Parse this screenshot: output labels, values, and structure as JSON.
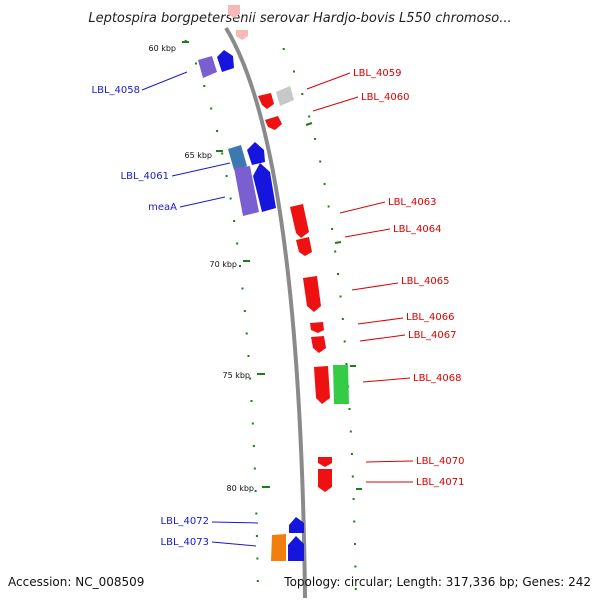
{
  "title": "Leptospira borgpetersenii serovar Hardjo-bovis L550 chromoso...",
  "footer": {
    "accession": "Accession: NC_008509",
    "topology": "Topology: circular; Length: 317,336 bp; Genes: 242"
  },
  "colors": {
    "backbone": "#8a8a8a",
    "tick": "#1a7f1a",
    "reverse_label": "#1a1acc",
    "forward_label": "#dd0000",
    "gene_red": "#ee1111",
    "gene_blue": "#1515dd",
    "gene_purple": "#7a5fd0",
    "gene_steel": "#3d78b0",
    "gene_green": "#33cc44",
    "gene_orange": "#f07f10",
    "gene_gray": "#c8c8c8",
    "gene_pink": "#f7b8b8"
  },
  "kbp_ticks": [
    {
      "id": "60",
      "label": "60 kbp"
    },
    {
      "id": "65",
      "label": "65 kbp"
    },
    {
      "id": "70",
      "label": "70 kbp"
    },
    {
      "id": "75",
      "label": "75 kbp"
    },
    {
      "id": "80",
      "label": "80 kbp"
    }
  ],
  "gene_labels": [
    {
      "id": "LBL_4058",
      "text": "LBL_4058",
      "strand": "reverse"
    },
    {
      "id": "LBL_4059",
      "text": "LBL_4059",
      "strand": "forward"
    },
    {
      "id": "LBL_4060",
      "text": "LBL_4060",
      "strand": "forward"
    },
    {
      "id": "LBL_4061",
      "text": "LBL_4061",
      "strand": "reverse"
    },
    {
      "id": "meaA",
      "text": "meaA",
      "strand": "reverse"
    },
    {
      "id": "LBL_4063",
      "text": "LBL_4063",
      "strand": "forward"
    },
    {
      "id": "LBL_4064",
      "text": "LBL_4064",
      "strand": "forward"
    },
    {
      "id": "LBL_4065",
      "text": "LBL_4065",
      "strand": "forward"
    },
    {
      "id": "LBL_4066",
      "text": "LBL_4066",
      "strand": "forward"
    },
    {
      "id": "LBL_4067",
      "text": "LBL_4067",
      "strand": "forward"
    },
    {
      "id": "LBL_4068",
      "text": "LBL_4068",
      "strand": "forward"
    },
    {
      "id": "LBL_4070",
      "text": "LBL_4070",
      "strand": "forward"
    },
    {
      "id": "LBL_4071",
      "text": "LBL_4071",
      "strand": "forward"
    },
    {
      "id": "LBL_4072",
      "text": "LBL_4072",
      "strand": "reverse"
    },
    {
      "id": "LBL_4073",
      "text": "LBL_4073",
      "strand": "reverse"
    }
  ]
}
